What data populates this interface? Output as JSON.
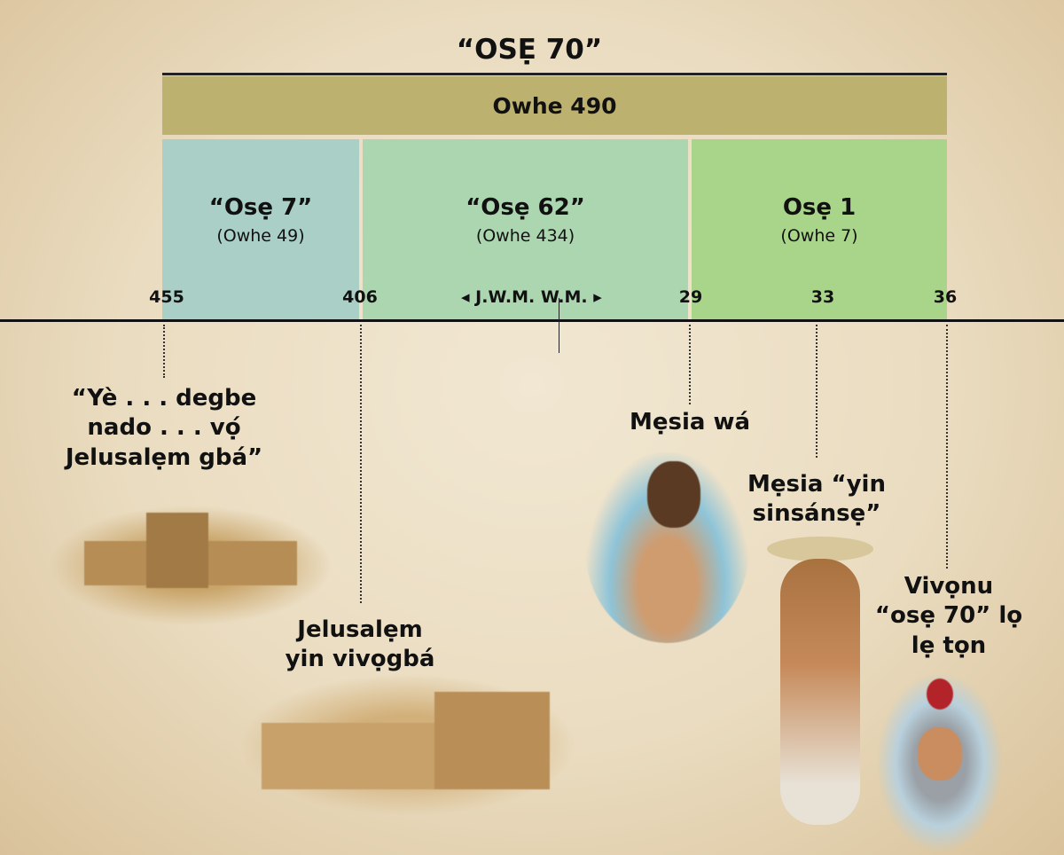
{
  "title": "“OSẸ 70”",
  "total": "Owhe 490",
  "segments": [
    {
      "heading": "“Osẹ 7”",
      "years": "(Owhe 49)",
      "color": "#a9cfc6"
    },
    {
      "heading": "“Osẹ 62”",
      "years": "(Owhe 434)",
      "color": "#acd6b0"
    },
    {
      "heading": "Osẹ 1",
      "years": "(Owhe 7)",
      "color": "#a9d58a"
    }
  ],
  "ticks": [
    "455",
    "406",
    "29",
    "33",
    "36"
  ],
  "era": {
    "left_arrow": "◂",
    "label": "J.W.M. W.M.",
    "right_arrow": "▸"
  },
  "events": [
    {
      "lines": [
        "“Yè . . . degbe",
        "nado . . . vọ́",
        "Jelusalẹm gbá”"
      ]
    },
    {
      "lines": [
        "Jelusalẹm",
        "yin vivọgbá"
      ]
    },
    {
      "lines": [
        "Mẹsia wá"
      ]
    },
    {
      "lines": [
        "Mẹsia “yin",
        "sinsánsẹ”"
      ]
    },
    {
      "lines": [
        "Vivọnu",
        "“osẹ 70” lọ",
        "lẹ tọn"
      ]
    }
  ]
}
